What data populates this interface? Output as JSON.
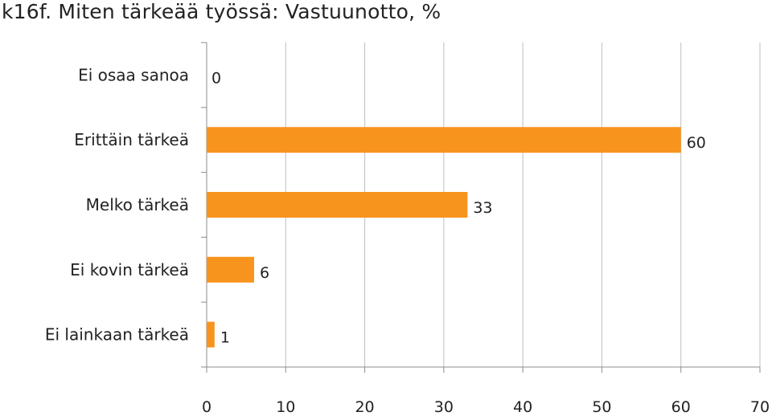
{
  "chart_data": {
    "type": "bar",
    "orientation": "horizontal",
    "title": "k16f. Miten tärkeää työssä: Vastuunotto, %",
    "categories": [
      "Ei osaa sanoa",
      "Erittäin tärkeä",
      "Melko tärkeä",
      "Ei kovin tärkeä",
      "Ei lainkaan tärkeä"
    ],
    "values": [
      0,
      60,
      33,
      6,
      1
    ],
    "value_labels": [
      "0",
      "60",
      "33",
      "6",
      "1"
    ],
    "xlim": [
      0,
      70
    ],
    "xticks": [
      0,
      10,
      20,
      30,
      40,
      50,
      60,
      70
    ],
    "grid": true,
    "legend": "none",
    "colors": {
      "bar": "#F7941D",
      "grid": "#bfbfbf",
      "axis": "#8c8c8c",
      "text": "#222222"
    }
  }
}
